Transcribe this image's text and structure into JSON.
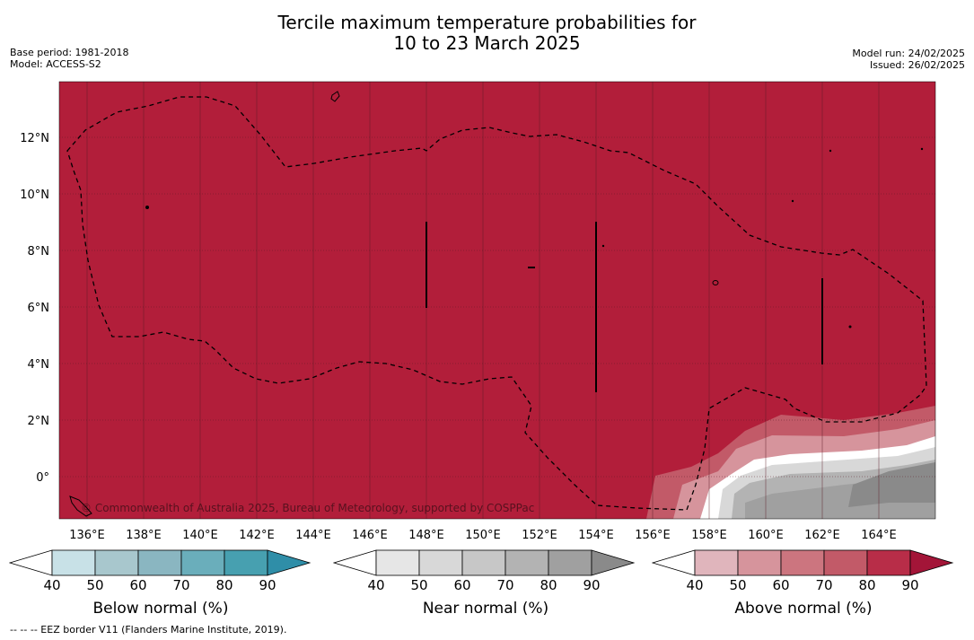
{
  "title_line1": "Tercile maximum temperature probabilities for",
  "title_line2": "10 to 23 March 2025",
  "base_period": "Base period: 1981-2018",
  "model": "Model: ACCESS-S2",
  "model_run": "Model run: 24/02/2025",
  "issued": "Issued: 26/02/2025",
  "copyright": "© Commonwealth of Australia 2025, Bureau of Meteorology, supported by COSPPac",
  "footer": "--  --  -- EEZ border V11 (Flanders Marine Institute, 2019).",
  "map": {
    "lon_labels": [
      "136°E",
      "138°E",
      "140°E",
      "142°E",
      "144°E",
      "146°E",
      "148°E",
      "150°E",
      "152°E",
      "154°E",
      "156°E",
      "158°E",
      "160°E",
      "162°E",
      "164°E"
    ],
    "lat_labels": [
      "12°N",
      "10°N",
      "8°N",
      "6°N",
      "4°N",
      "2°N",
      "0°"
    ],
    "background_color": "#b21e3a",
    "legend_colors": {
      "above": [
        "#e0b5bc",
        "#d6949c",
        "#cc757f",
        "#c25a68",
        "#b82d48",
        "#a31538"
      ],
      "near": [
        "#e6e6e6",
        "#d8d8d8",
        "#c7c7c7",
        "#b3b3b3",
        "#a0a0a0",
        "#8a8a8a"
      ],
      "below": [
        "#c8e1e7",
        "#a8c7cd",
        "#8ab6c1",
        "#6aaebb",
        "#47a0b0",
        "#2f8ea8"
      ]
    }
  },
  "colorbars": [
    {
      "title": "Below normal (%)",
      "ticks": [
        "40",
        "50",
        "60",
        "70",
        "80",
        "90"
      ]
    },
    {
      "title": "Near normal (%)",
      "ticks": [
        "40",
        "50",
        "60",
        "70",
        "80",
        "90"
      ]
    },
    {
      "title": "Above normal (%)",
      "ticks": [
        "40",
        "50",
        "60",
        "70",
        "80",
        "90"
      ]
    }
  ]
}
